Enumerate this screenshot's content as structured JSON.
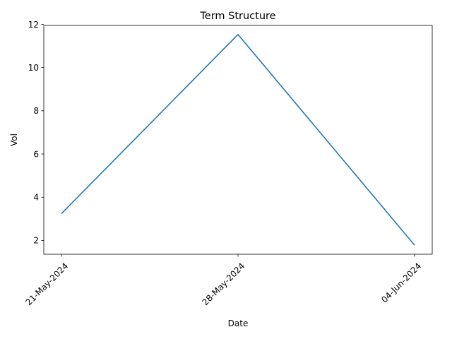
{
  "chart_data": {
    "type": "line",
    "title": "Term Structure",
    "xlabel": "Date",
    "ylabel": "Vol",
    "x": [
      "21-May-2024",
      "28-May-2024",
      "04-Jun-2024"
    ],
    "series": [
      {
        "values": [
          3.24,
          11.53,
          1.78
        ],
        "color": "#1f77b4"
      }
    ],
    "ylim": [
      1.36,
      11.95
    ],
    "yticks": [
      2,
      4,
      6,
      8,
      10,
      12
    ],
    "grid": false,
    "legend": "none"
  }
}
